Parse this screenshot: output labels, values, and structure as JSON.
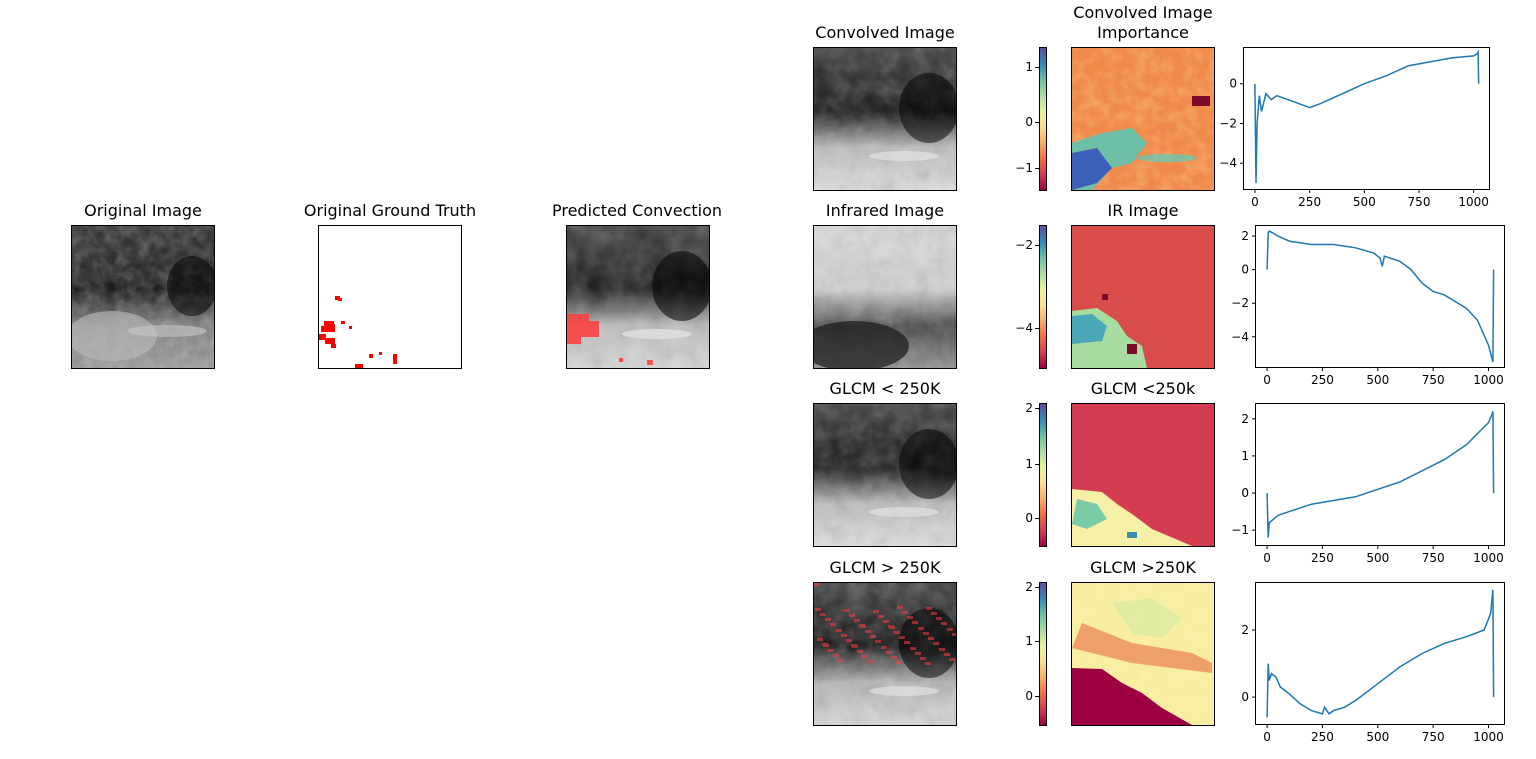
{
  "left_titles": {
    "original": "Original Image",
    "ground_truth": "Original Ground Truth",
    "predicted": "Predicted Convection"
  },
  "rows": [
    {
      "image_title": "Convolved Image",
      "importance_title": "Convolved Image\nImportance",
      "colorbar_ticks": [
        "1",
        "0",
        "−1"
      ]
    },
    {
      "image_title": "Infrared Image",
      "importance_title": "IR Image",
      "colorbar_ticks": [
        "−2",
        "−4"
      ]
    },
    {
      "image_title": "GLCM < 250K",
      "importance_title": "GLCM <250k",
      "colorbar_ticks": [
        "2",
        "1",
        "0"
      ]
    },
    {
      "image_title": "GLCM > 250K",
      "importance_title": "GLCM >250K",
      "colorbar_ticks": [
        "2",
        "1",
        "0"
      ]
    }
  ],
  "colors": {
    "line": "#1f77b4",
    "ground_truth_marks": "#ff0000",
    "overlay": "#ff3b3b"
  },
  "chart_data": [
    {
      "type": "line",
      "x": [
        0,
        5,
        10,
        20,
        30,
        50,
        75,
        100,
        150,
        200,
        250,
        300,
        400,
        500,
        600,
        700,
        750,
        800,
        900,
        1000,
        1015,
        1020,
        1023
      ],
      "y": [
        0.0,
        -5.0,
        -2.0,
        -0.6,
        -1.4,
        -0.5,
        -0.8,
        -0.6,
        -0.8,
        -1.0,
        -1.2,
        -1.0,
        -0.5,
        0.0,
        0.4,
        0.9,
        1.0,
        1.1,
        1.3,
        1.4,
        1.5,
        1.6,
        0.0
      ],
      "x_ticks": [
        0,
        250,
        500,
        750,
        1000
      ],
      "y_ticks": [
        0,
        -2,
        -4
      ],
      "xlim": [
        -50,
        1070
      ],
      "ylim": [
        -5.3,
        1.8
      ]
    },
    {
      "type": "line",
      "x": [
        0,
        5,
        10,
        50,
        100,
        200,
        300,
        400,
        480,
        510,
        520,
        530,
        600,
        650,
        700,
        750,
        800,
        900,
        950,
        1000,
        1020,
        1023
      ],
      "y": [
        0.0,
        2.2,
        2.3,
        2.0,
        1.7,
        1.5,
        1.5,
        1.3,
        1.0,
        0.7,
        0.2,
        0.8,
        0.5,
        0.0,
        -0.8,
        -1.3,
        -1.5,
        -2.3,
        -3.0,
        -4.5,
        -5.5,
        0.0
      ],
      "x_ticks": [
        0,
        250,
        500,
        750,
        1000
      ],
      "y_ticks": [
        2,
        0,
        -2,
        -4
      ],
      "xlim": [
        -50,
        1070
      ],
      "ylim": [
        -5.8,
        2.6
      ]
    },
    {
      "type": "line",
      "x": [
        0,
        5,
        10,
        50,
        100,
        200,
        300,
        400,
        500,
        600,
        700,
        800,
        900,
        950,
        1000,
        1015,
        1020,
        1023
      ],
      "y": [
        0.0,
        -1.2,
        -0.8,
        -0.6,
        -0.5,
        -0.3,
        -0.2,
        -0.1,
        0.1,
        0.3,
        0.6,
        0.9,
        1.3,
        1.6,
        1.9,
        2.1,
        2.2,
        0.0
      ],
      "x_ticks": [
        0,
        250,
        500,
        750,
        1000
      ],
      "y_ticks": [
        2,
        1,
        0,
        -1
      ],
      "xlim": [
        -50,
        1070
      ],
      "ylim": [
        -1.4,
        2.4
      ]
    },
    {
      "type": "line",
      "x": [
        0,
        5,
        10,
        20,
        40,
        60,
        100,
        150,
        200,
        250,
        260,
        280,
        300,
        350,
        400,
        500,
        600,
        700,
        800,
        900,
        980,
        1010,
        1020,
        1023
      ],
      "y": [
        -0.6,
        1.0,
        0.5,
        0.7,
        0.6,
        0.3,
        0.1,
        -0.2,
        -0.4,
        -0.5,
        -0.3,
        -0.5,
        -0.4,
        -0.3,
        -0.1,
        0.4,
        0.9,
        1.3,
        1.6,
        1.8,
        2.0,
        2.5,
        3.2,
        0.0
      ],
      "x_ticks": [
        0,
        250,
        500,
        750,
        1000
      ],
      "y_ticks": [
        2,
        0
      ],
      "xlim": [
        -50,
        1070
      ],
      "ylim": [
        -0.8,
        3.4
      ]
    }
  ]
}
